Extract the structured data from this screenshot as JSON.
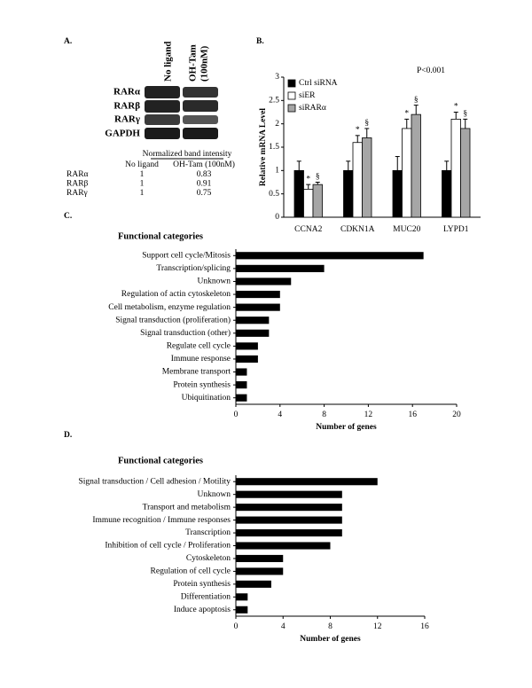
{
  "panel_a": {
    "panel_label": "A.",
    "columns": [
      "No ligand",
      "OH-Tam",
      "(100nM)"
    ],
    "bands": [
      "RARα",
      "RARβ",
      "RARγ",
      "GAPDH"
    ],
    "table": {
      "title": "Normalized band intensity",
      "header": [
        "No ligand",
        "OH-Tam (100nM)"
      ],
      "rows": [
        [
          "RARα",
          1,
          0.83
        ],
        [
          "RARβ",
          1,
          0.91
        ],
        [
          "RARγ",
          1,
          0.75
        ]
      ]
    }
  },
  "chart_data": [
    {
      "type": "bar",
      "panel_label": "B.",
      "ylabel": "Relative mRNA Level",
      "annotation": "P<0.001",
      "categories": [
        "CCNA2",
        "CDKN1A",
        "MUC20",
        "LYPD1"
      ],
      "series": [
        {
          "name": "Ctrl siRNA",
          "color": "#000000",
          "values": [
            1,
            1,
            1,
            1
          ],
          "errors": [
            0.2,
            0.2,
            0.3,
            0.2
          ]
        },
        {
          "name": "siER",
          "color": "#ffffff",
          "values": [
            0.6,
            1.6,
            1.9,
            2.1
          ],
          "errors": [
            0.1,
            0.15,
            0.2,
            0.15
          ],
          "markers": [
            "*",
            "*",
            "*",
            "*"
          ]
        },
        {
          "name": "siRARα",
          "color": "#a6a6a6",
          "values": [
            0.7,
            1.7,
            2.2,
            1.9
          ],
          "errors": [
            0.05,
            0.2,
            0.2,
            0.2
          ],
          "markers": [
            "§",
            "§",
            "§",
            "§"
          ]
        }
      ],
      "ylim": [
        0,
        3
      ],
      "yticks": [
        0,
        0.5,
        1,
        1.5,
        2,
        2.5,
        3
      ]
    },
    {
      "type": "hbar",
      "panel_label": "C.",
      "title": "Functional categories",
      "xlabel": "Number of genes",
      "color": "#000000",
      "categories": [
        "Support cell cycle/Mitosis",
        "Transcription/splicing",
        "Unknown",
        "Regulation of actin cytoskeleton",
        "Cell metabolism, enzyme regulation",
        "Signal transduction (proliferation)",
        "Signal transduction (other)",
        "Regulate cell cycle",
        "Immune response",
        "Membrane transport",
        "Protein synthesis",
        "Ubiquitination"
      ],
      "values": [
        17,
        8,
        5,
        4,
        4,
        3,
        3,
        2,
        2,
        1,
        1,
        1
      ],
      "xlim": [
        0,
        20
      ],
      "xticks": [
        0,
        4,
        8,
        12,
        16,
        20
      ]
    },
    {
      "type": "hbar",
      "panel_label": "D.",
      "title": "Functional categories",
      "xlabel": "Number of genes",
      "color": "#000000",
      "categories": [
        "Signal transduction / Cell adhesion / Motility",
        "Unknown",
        "Transport and metabolism",
        "Immune recognition / Immune responses",
        "Transcription",
        "Inhibition of cell cycle / Proliferation",
        "Cytoskeleton",
        "Regulation of cell cycle",
        "Protein synthesis",
        "Differentiation",
        "Induce apoptosis"
      ],
      "values": [
        12,
        9,
        9,
        9,
        9,
        8,
        4,
        4,
        3,
        1,
        1
      ],
      "xlim": [
        0,
        16
      ],
      "xticks": [
        0,
        4,
        8,
        12,
        16
      ]
    }
  ]
}
